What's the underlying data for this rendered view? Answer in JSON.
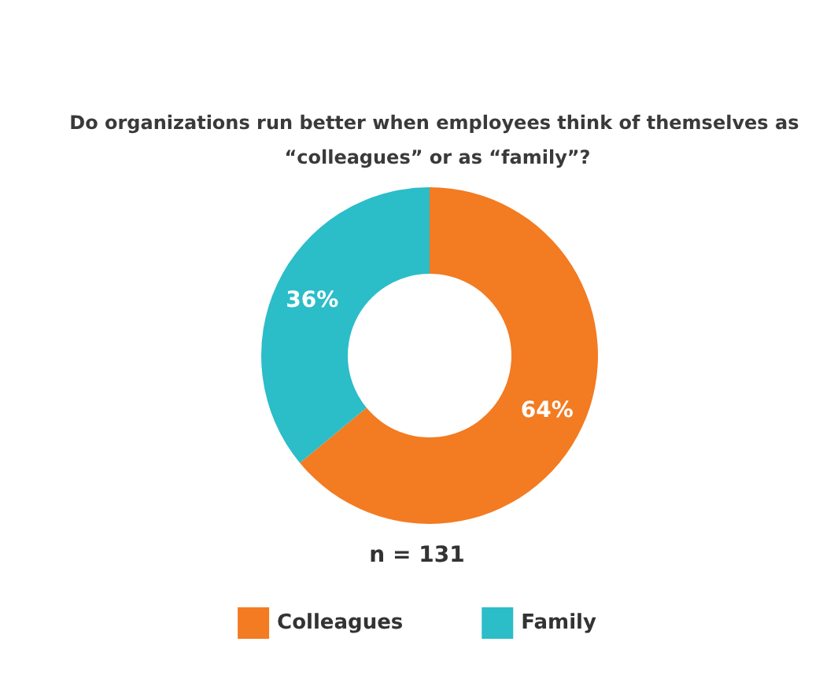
{
  "chart_data": {
    "type": "donut",
    "title": "Do organizations run better when employees think of themselves as “colleagues” or as “family”?",
    "categories": [
      "Colleagues",
      "Family"
    ],
    "values": [
      64,
      36
    ],
    "colors": [
      "#f37b21",
      "#2bbdc8"
    ],
    "value_labels": [
      "64%",
      "36%"
    ],
    "annotations": [
      "n = 131"
    ],
    "legend": "bottom"
  }
}
